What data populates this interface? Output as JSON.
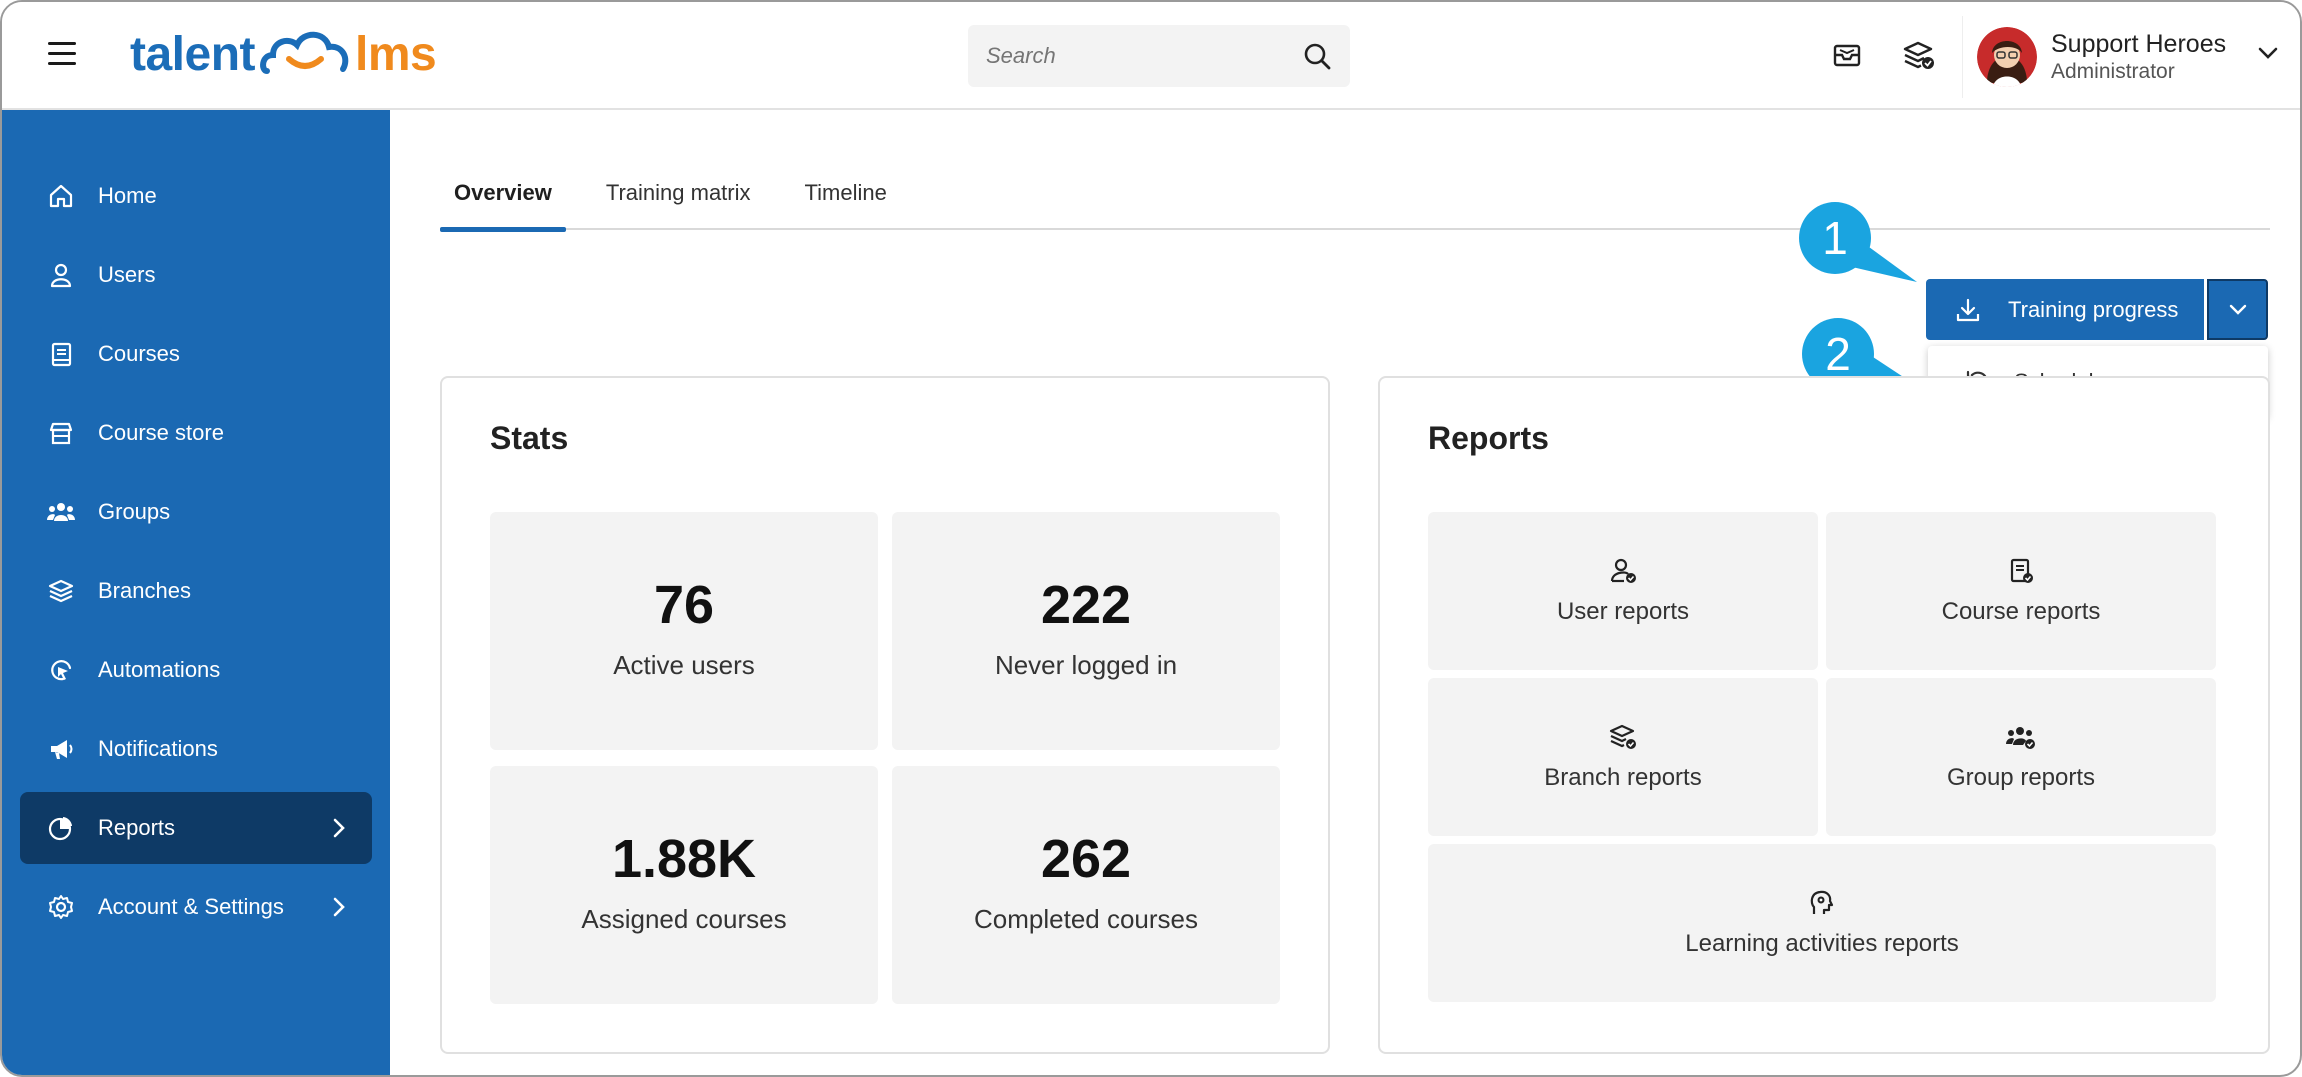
{
  "header": {
    "logo_part1": "talent",
    "logo_part2": "lms",
    "search_placeholder": "Search",
    "profile_name": "Support Heroes",
    "profile_role": "Administrator"
  },
  "sidebar": {
    "items": [
      {
        "label": "Home",
        "icon": "home-icon"
      },
      {
        "label": "Users",
        "icon": "user-icon"
      },
      {
        "label": "Courses",
        "icon": "book-icon"
      },
      {
        "label": "Course store",
        "icon": "store-icon"
      },
      {
        "label": "Groups",
        "icon": "groups-icon"
      },
      {
        "label": "Branches",
        "icon": "layers-icon"
      },
      {
        "label": "Automations",
        "icon": "automation-icon"
      },
      {
        "label": "Notifications",
        "icon": "megaphone-icon"
      },
      {
        "label": "Reports",
        "icon": "pie-chart-icon",
        "active": true
      },
      {
        "label": "Account & Settings",
        "icon": "gear-icon"
      }
    ]
  },
  "tabs": [
    "Overview",
    "Training matrix",
    "Timeline"
  ],
  "actions": {
    "training_progress": "Training progress",
    "schedule": "Schedule"
  },
  "callouts": [
    "1",
    "2"
  ],
  "stats": {
    "title": "Stats",
    "items": [
      {
        "value": "76",
        "label": "Active users"
      },
      {
        "value": "222",
        "label": "Never logged in"
      },
      {
        "value": "1.88K",
        "label": "Assigned courses"
      },
      {
        "value": "262",
        "label": "Completed courses"
      }
    ]
  },
  "reports": {
    "title": "Reports",
    "items": [
      {
        "label": "User reports",
        "icon": "user-report-icon"
      },
      {
        "label": "Course reports",
        "icon": "course-report-icon"
      },
      {
        "label": "Branch reports",
        "icon": "branch-report-icon"
      },
      {
        "label": "Group reports",
        "icon": "group-report-icon"
      },
      {
        "label": "Learning activities reports",
        "icon": "learning-activity-icon"
      }
    ]
  },
  "colors": {
    "brand_blue": "#1b69b3",
    "sidebar_active": "#0e3a66",
    "logo_orange": "#f08a1d",
    "callout_blue": "#1aa4e0"
  }
}
